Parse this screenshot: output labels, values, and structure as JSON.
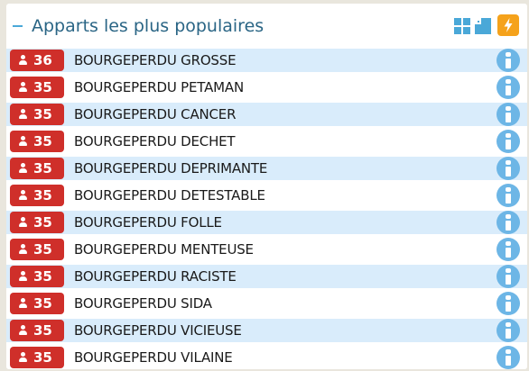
{
  "header": {
    "title": "Apparts les plus populaires",
    "icons": {
      "collapse": "minus-icon",
      "grid": "grid-view-icon",
      "expand": "expand-window-icon",
      "bolt": "lightning-bolt-icon"
    },
    "colors": {
      "title": "#2a6585",
      "accent": "#4aa8d8",
      "bolt_bg": "#f5a21b"
    }
  },
  "list": {
    "colors": {
      "badge": "#cf2f2a",
      "row_highlight": "#d9ecfb",
      "info": "#6db6e6"
    },
    "items": [
      {
        "count": "36",
        "name": "BOURGEPERDU GROSSE"
      },
      {
        "count": "35",
        "name": "BOURGEPERDU PETAMAN"
      },
      {
        "count": "35",
        "name": "BOURGEPERDU CANCER"
      },
      {
        "count": "35",
        "name": "BOURGEPERDU DECHET"
      },
      {
        "count": "35",
        "name": "BOURGEPERDU DEPRIMANTE"
      },
      {
        "count": "35",
        "name": "BOURGEPERDU DETESTABLE"
      },
      {
        "count": "35",
        "name": "BOURGEPERDU FOLLE"
      },
      {
        "count": "35",
        "name": "BOURGEPERDU MENTEUSE"
      },
      {
        "count": "35",
        "name": "BOURGEPERDU RACISTE"
      },
      {
        "count": "35",
        "name": "BOURGEPERDU SIDA"
      },
      {
        "count": "35",
        "name": "BOURGEPERDU VICIEUSE"
      },
      {
        "count": "35",
        "name": "BOURGEPERDU VILAINE"
      }
    ]
  }
}
